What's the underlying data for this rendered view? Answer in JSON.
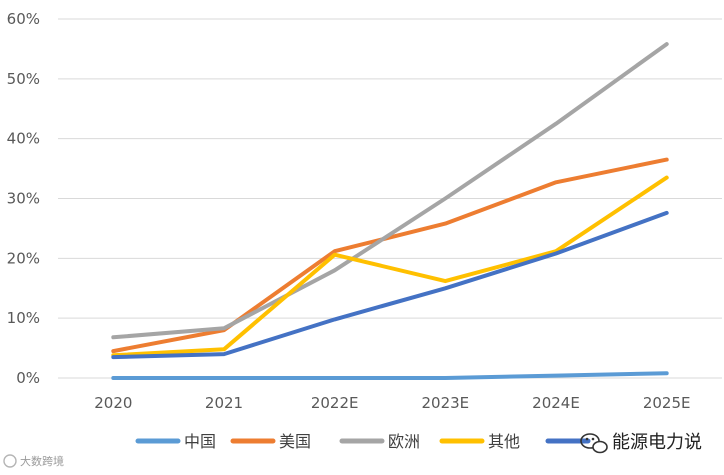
{
  "chart_data": {
    "type": "line",
    "categories": [
      "2020",
      "2021",
      "2022E",
      "2023E",
      "2024E",
      "2025E"
    ],
    "ylim": [
      0,
      60
    ],
    "yticks": [
      "0%",
      "10%",
      "20%",
      "30%",
      "40%",
      "50%",
      "60%"
    ],
    "grid": true,
    "legend_position": "bottom",
    "series": [
      {
        "name": "中国",
        "color": "#5b9bd5",
        "values": [
          0,
          0,
          0,
          0,
          0.4,
          0.8
        ]
      },
      {
        "name": "美国",
        "color": "#ed7d31",
        "values": [
          4.5,
          8.0,
          21.2,
          25.8,
          32.7,
          36.5
        ]
      },
      {
        "name": "欧洲",
        "color": "#a5a5a5",
        "values": [
          6.8,
          8.3,
          18.0,
          30.0,
          42.5,
          55.8
        ]
      },
      {
        "name": "其他",
        "color": "#ffc000",
        "values": [
          3.8,
          4.8,
          20.6,
          16.2,
          21.2,
          33.5
        ]
      },
      {
        "name": "",
        "color": "#4472c4",
        "values": [
          3.5,
          4.0,
          9.8,
          15.0,
          20.8,
          27.6
        ]
      }
    ]
  },
  "watermark": {
    "label": "能源电力说",
    "logo_text": "大数跨境",
    "icon": "wechat-icon"
  }
}
